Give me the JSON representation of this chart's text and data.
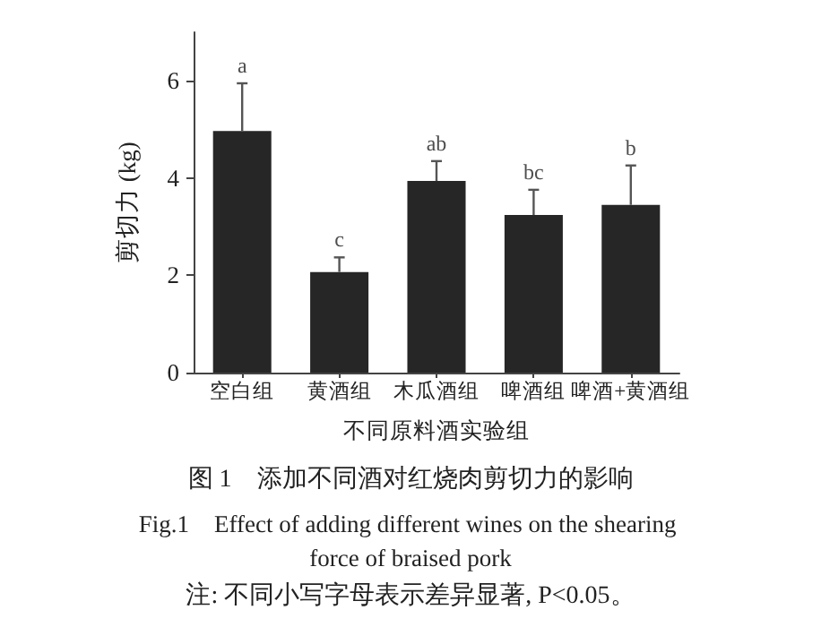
{
  "chart_data": {
    "type": "bar",
    "title": "图 1　添加不同酒对红烧肉剪切力的影响",
    "subtitle": "Fig.1　Effect of adding different wines on the shearing force of braised pork",
    "xlabel": "不同原料酒实验组",
    "ylabel": "剪切力 (kg)",
    "categories": [
      "空白组",
      "黄酒组",
      "木瓜酒组",
      "啤酒组",
      "啤酒+黄酒组"
    ],
    "values": [
      4.97,
      2.07,
      3.94,
      3.24,
      3.45
    ],
    "errors": [
      [
        4.97,
        5.95
      ],
      [
        2.07,
        2.37
      ],
      [
        3.94,
        4.35
      ],
      [
        3.24,
        3.76
      ],
      [
        3.45,
        4.26
      ]
    ],
    "color": "#262626",
    "ylim": [
      0,
      7
    ],
    "yticks": [
      0,
      2,
      4,
      6
    ],
    "grid": false,
    "annotations": [
      "a",
      "c",
      "ab",
      "bc",
      "b",
      "注: 不同小写字母表示差异显著, P<0.05。"
    ]
  }
}
